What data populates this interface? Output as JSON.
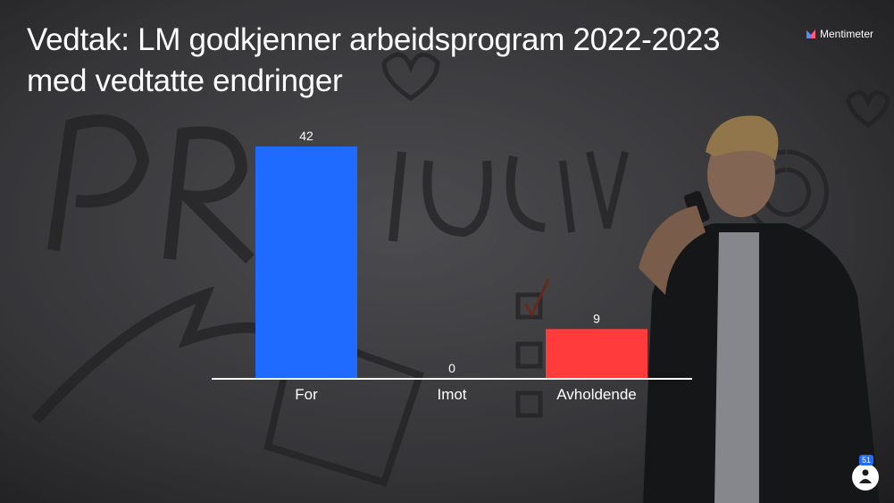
{
  "brand": "Mentimeter",
  "participants": "51",
  "chart_data": {
    "type": "bar",
    "title": "Vedtak: LM godkjenner arbeidsprogram 2022-2023 med vedtatte endringer",
    "categories": [
      "For",
      "Imot",
      "Avholdende"
    ],
    "values": [
      42,
      0,
      9
    ],
    "colors": [
      "#1f6bff",
      null,
      "#ff3b3b"
    ]
  }
}
